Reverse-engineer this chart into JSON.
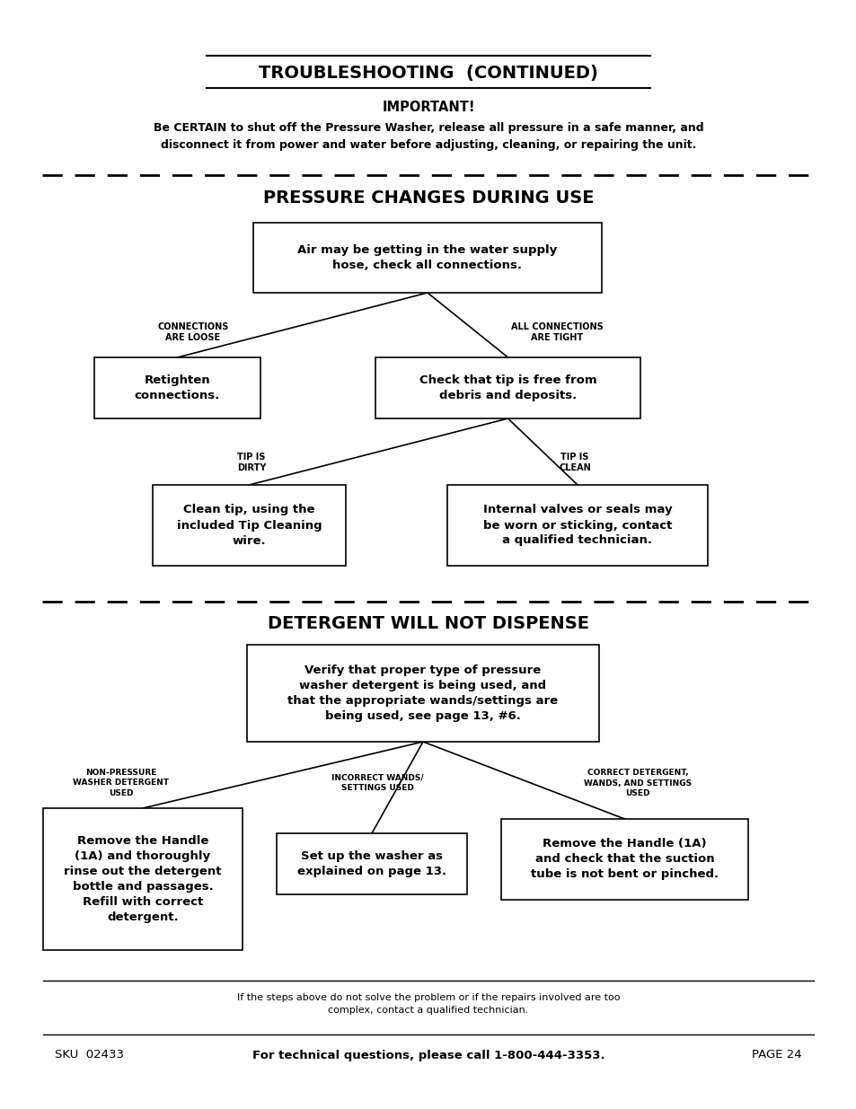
{
  "bg_color": "#ffffff",
  "page_width": 9.54,
  "page_height": 12.35,
  "title_text": "TROUBLESHOOTING  (CONTINUED)",
  "important_header": "IMPORTANT!",
  "important_body": "Be CERTAIN to shut off the Pressure Washer, release all pressure in a safe manner, and\ndisconnect it from power and water before adjusting, cleaning, or repairing the unit.",
  "section1_title": "PRESSURE CHANGES DURING USE",
  "section2_title": "DETERGENT WILL NOT DISPENSE",
  "box1_text": "Air may be getting in the water supply\nhose, check all connections.",
  "box2_text": "Retighten\nconnections.",
  "box3_text": "Check that tip is free from\ndebris and deposits.",
  "box4_text": "Clean tip, using the\nincluded Tip Cleaning\nwire.",
  "box5_text": "Internal valves or seals may\nbe worn or sticking, contact\na qualified technician.",
  "box6_text": "Verify that proper type of pressure\nwasher detergent is being used, and\nthat the appropriate wands/settings are\nbeing used, see page 13, #6.",
  "box7_text": "Remove the Handle\n(1A) and thoroughly\nrinse out the detergent\nbottle and passages.\nRefill with correct\ndetergent.",
  "box8_text": "Set up the washer as\nexplained on page 13.",
  "box9_text": "Remove the Handle (1A)\nand check that the suction\ntube is not bent or pinched.",
  "label_loose": "CONNECTIONS\nARE LOOSE",
  "label_tight": "ALL CONNECTIONS\nARE TIGHT",
  "label_dirty": "TIP IS\nDIRTY",
  "label_clean": "TIP IS\nCLEAN",
  "label_nonpressure": "NON-PRESSURE\nWASHER DETERGENT\nUSED",
  "label_incorrect": "INCORRECT WANDS/\nSETTINGS USED",
  "label_correct": "CORRECT DETERGENT,\nWANDS, AND SETTINGS\nUSED",
  "footer_small": "If the steps above do not solve the problem or if the repairs involved are too\ncomplex, contact a qualified technician.",
  "footer_sku": "SKU  02433",
  "footer_tech": "For technical questions, please call 1-800-444-3353.",
  "footer_page": "PAGE 24"
}
